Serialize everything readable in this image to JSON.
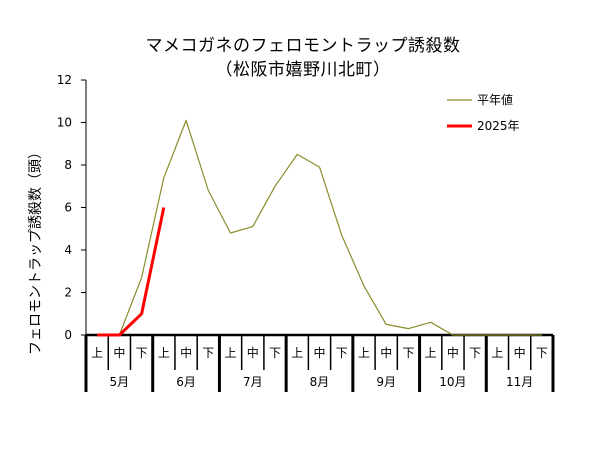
{
  "chart_data": {
    "type": "line",
    "title": "マメコガネのフェロモントラップ誘殺数",
    "subtitle": "（松阪市嬉野川北町）",
    "xlabel": "",
    "ylabel": "フェロモントラップ誘殺数（頭）",
    "ylim": [
      0,
      12
    ],
    "yticks": [
      0,
      2,
      4,
      6,
      8,
      10,
      12
    ],
    "grid": false,
    "legend_position": "top-right",
    "x_periods": [
      "上",
      "中",
      "下",
      "上",
      "中",
      "下",
      "上",
      "中",
      "下",
      "上",
      "中",
      "下",
      "上",
      "中",
      "下",
      "上",
      "中",
      "下",
      "上",
      "中",
      "下"
    ],
    "x_months": [
      "5月",
      "6月",
      "7月",
      "8月",
      "9月",
      "10月",
      "11月"
    ],
    "series": [
      {
        "name": "平年値",
        "color": "#8b8b2a",
        "values": [
          0,
          0,
          2.7,
          7.4,
          10.1,
          6.8,
          4.8,
          5.1,
          7.0,
          8.5,
          7.9,
          4.7,
          2.3,
          0.5,
          0.3,
          0.6,
          0,
          0,
          0,
          0,
          0
        ]
      },
      {
        "name": "2025年",
        "color": "#ff0000",
        "values": [
          0,
          0,
          1.0,
          6.0
        ]
      }
    ]
  }
}
